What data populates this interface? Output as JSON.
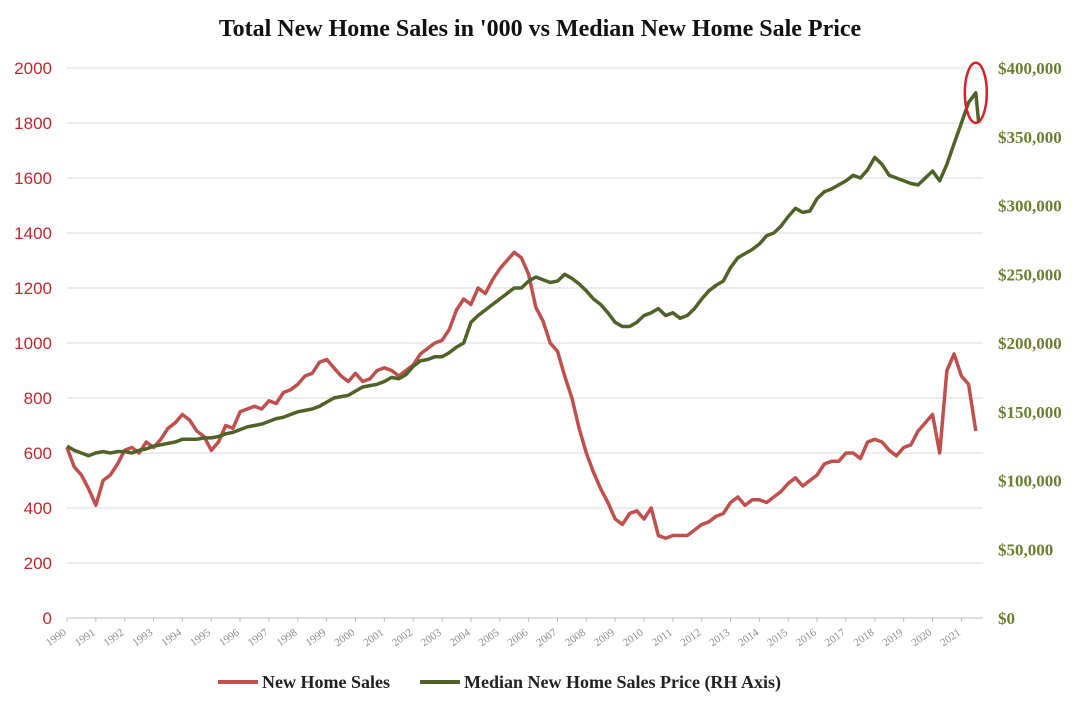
{
  "colors": {
    "sales": "#c0504d",
    "price": "#4f6228",
    "left_axis_text": "#c0282d",
    "right_axis_text": "#6b7d2f",
    "highlight_circle": "#d9202a"
  },
  "chart_data": {
    "type": "line",
    "title": "Total New Home Sales in '000 vs Median New Home Sale Price",
    "x_tick_labels": [
      "1990",
      "1991",
      "1992",
      "1993",
      "1994",
      "1995",
      "1996",
      "1997",
      "1998",
      "1999",
      "2000",
      "2001",
      "2002",
      "2003",
      "2004",
      "2005",
      "2006",
      "2007",
      "2008",
      "2009",
      "2010",
      "2011",
      "2012",
      "2013",
      "2014",
      "2015",
      "2016",
      "2017",
      "2018",
      "2019",
      "2020",
      "2021"
    ],
    "y_left": {
      "range": [
        0,
        2000
      ],
      "ticks": [
        "0",
        "200",
        "400",
        "600",
        "800",
        "1000",
        "1200",
        "1400",
        "1600",
        "1800",
        "2000"
      ]
    },
    "y_right": {
      "range": [
        0,
        400000
      ],
      "ticks": [
        "$0",
        "$50,000",
        "$100,000",
        "$150,000",
        "$200,000",
        "$250,000",
        "$300,000",
        "$350,000",
        "$400,000"
      ]
    },
    "grid": "horizontal",
    "legend_position": "bottom",
    "annotation": "red circle around 2021 median price peak",
    "series": [
      {
        "name": "New Home Sales",
        "axis": "left",
        "points": [
          [
            1990.0,
            620
          ],
          [
            1990.25,
            550
          ],
          [
            1990.5,
            520
          ],
          [
            1990.75,
            470
          ],
          [
            1991.0,
            410
          ],
          [
            1991.25,
            500
          ],
          [
            1991.5,
            520
          ],
          [
            1991.75,
            560
          ],
          [
            1992.0,
            610
          ],
          [
            1992.25,
            620
          ],
          [
            1992.5,
            600
          ],
          [
            1992.75,
            640
          ],
          [
            1993.0,
            620
          ],
          [
            1993.25,
            650
          ],
          [
            1993.5,
            690
          ],
          [
            1993.75,
            710
          ],
          [
            1994.0,
            740
          ],
          [
            1994.25,
            720
          ],
          [
            1994.5,
            680
          ],
          [
            1994.75,
            660
          ],
          [
            1995.0,
            610
          ],
          [
            1995.25,
            640
          ],
          [
            1995.5,
            700
          ],
          [
            1995.75,
            690
          ],
          [
            1996.0,
            750
          ],
          [
            1996.25,
            760
          ],
          [
            1996.5,
            770
          ],
          [
            1996.75,
            760
          ],
          [
            1997.0,
            790
          ],
          [
            1997.25,
            780
          ],
          [
            1997.5,
            820
          ],
          [
            1997.75,
            830
          ],
          [
            1998.0,
            850
          ],
          [
            1998.25,
            880
          ],
          [
            1998.5,
            890
          ],
          [
            1998.75,
            930
          ],
          [
            1999.0,
            940
          ],
          [
            1999.25,
            910
          ],
          [
            1999.5,
            880
          ],
          [
            1999.75,
            860
          ],
          [
            2000.0,
            890
          ],
          [
            2000.25,
            860
          ],
          [
            2000.5,
            870
          ],
          [
            2000.75,
            900
          ],
          [
            2001.0,
            910
          ],
          [
            2001.25,
            900
          ],
          [
            2001.5,
            880
          ],
          [
            2001.75,
            900
          ],
          [
            2002.0,
            920
          ],
          [
            2002.25,
            960
          ],
          [
            2002.5,
            980
          ],
          [
            2002.75,
            1000
          ],
          [
            2003.0,
            1010
          ],
          [
            2003.25,
            1050
          ],
          [
            2003.5,
            1120
          ],
          [
            2003.75,
            1160
          ],
          [
            2004.0,
            1140
          ],
          [
            2004.25,
            1200
          ],
          [
            2004.5,
            1180
          ],
          [
            2004.75,
            1230
          ],
          [
            2005.0,
            1270
          ],
          [
            2005.25,
            1300
          ],
          [
            2005.5,
            1330
          ],
          [
            2005.75,
            1310
          ],
          [
            2006.0,
            1250
          ],
          [
            2006.25,
            1130
          ],
          [
            2006.5,
            1080
          ],
          [
            2006.75,
            1000
          ],
          [
            2007.0,
            970
          ],
          [
            2007.25,
            880
          ],
          [
            2007.5,
            800
          ],
          [
            2007.75,
            690
          ],
          [
            2008.0,
            600
          ],
          [
            2008.25,
            530
          ],
          [
            2008.5,
            470
          ],
          [
            2008.75,
            420
          ],
          [
            2009.0,
            360
          ],
          [
            2009.25,
            340
          ],
          [
            2009.5,
            380
          ],
          [
            2009.75,
            390
          ],
          [
            2010.0,
            360
          ],
          [
            2010.25,
            400
          ],
          [
            2010.5,
            300
          ],
          [
            2010.75,
            290
          ],
          [
            2011.0,
            300
          ],
          [
            2011.25,
            300
          ],
          [
            2011.5,
            300
          ],
          [
            2011.75,
            320
          ],
          [
            2012.0,
            340
          ],
          [
            2012.25,
            350
          ],
          [
            2012.5,
            370
          ],
          [
            2012.75,
            380
          ],
          [
            2013.0,
            420
          ],
          [
            2013.25,
            440
          ],
          [
            2013.5,
            410
          ],
          [
            2013.75,
            430
          ],
          [
            2014.0,
            430
          ],
          [
            2014.25,
            420
          ],
          [
            2014.5,
            440
          ],
          [
            2014.75,
            460
          ],
          [
            2015.0,
            490
          ],
          [
            2015.25,
            510
          ],
          [
            2015.5,
            480
          ],
          [
            2015.75,
            500
          ],
          [
            2016.0,
            520
          ],
          [
            2016.25,
            560
          ],
          [
            2016.5,
            570
          ],
          [
            2016.75,
            570
          ],
          [
            2017.0,
            600
          ],
          [
            2017.25,
            600
          ],
          [
            2017.5,
            580
          ],
          [
            2017.75,
            640
          ],
          [
            2018.0,
            650
          ],
          [
            2018.25,
            640
          ],
          [
            2018.5,
            610
          ],
          [
            2018.75,
            590
          ],
          [
            2019.0,
            620
          ],
          [
            2019.25,
            630
          ],
          [
            2019.5,
            680
          ],
          [
            2019.75,
            710
          ],
          [
            2020.0,
            740
          ],
          [
            2020.25,
            600
          ],
          [
            2020.5,
            900
          ],
          [
            2020.75,
            960
          ],
          [
            2021.0,
            880
          ],
          [
            2021.25,
            850
          ],
          [
            2021.5,
            680
          ]
        ]
      },
      {
        "name": "Median New Home Sales Price (RH Axis)",
        "axis": "right",
        "points": [
          [
            1990.0,
            125000
          ],
          [
            1990.25,
            122000
          ],
          [
            1990.5,
            120000
          ],
          [
            1990.75,
            118000
          ],
          [
            1991.0,
            120000
          ],
          [
            1991.25,
            121000
          ],
          [
            1991.5,
            120000
          ],
          [
            1991.75,
            121000
          ],
          [
            1992.0,
            121000
          ],
          [
            1992.25,
            120000
          ],
          [
            1992.5,
            122000
          ],
          [
            1992.75,
            123000
          ],
          [
            1993.0,
            125000
          ],
          [
            1993.25,
            126000
          ],
          [
            1993.5,
            127000
          ],
          [
            1993.75,
            128000
          ],
          [
            1994.0,
            130000
          ],
          [
            1994.25,
            130000
          ],
          [
            1994.5,
            130000
          ],
          [
            1994.75,
            131000
          ],
          [
            1995.0,
            131000
          ],
          [
            1995.25,
            132000
          ],
          [
            1995.5,
            134000
          ],
          [
            1995.75,
            135000
          ],
          [
            1996.0,
            137000
          ],
          [
            1996.25,
            139000
          ],
          [
            1996.5,
            140000
          ],
          [
            1996.75,
            141000
          ],
          [
            1997.0,
            143000
          ],
          [
            1997.25,
            145000
          ],
          [
            1997.5,
            146000
          ],
          [
            1997.75,
            148000
          ],
          [
            1998.0,
            150000
          ],
          [
            1998.25,
            151000
          ],
          [
            1998.5,
            152000
          ],
          [
            1998.75,
            154000
          ],
          [
            1999.0,
            157000
          ],
          [
            1999.25,
            160000
          ],
          [
            1999.5,
            161000
          ],
          [
            1999.75,
            162000
          ],
          [
            2000.0,
            165000
          ],
          [
            2000.25,
            168000
          ],
          [
            2000.5,
            169000
          ],
          [
            2000.75,
            170000
          ],
          [
            2001.0,
            172000
          ],
          [
            2001.25,
            175000
          ],
          [
            2001.5,
            174000
          ],
          [
            2001.75,
            177000
          ],
          [
            2002.0,
            183000
          ],
          [
            2002.25,
            187000
          ],
          [
            2002.5,
            188000
          ],
          [
            2002.75,
            190000
          ],
          [
            2003.0,
            190000
          ],
          [
            2003.25,
            193000
          ],
          [
            2003.5,
            197000
          ],
          [
            2003.75,
            200000
          ],
          [
            2004.0,
            215000
          ],
          [
            2004.25,
            220000
          ],
          [
            2004.5,
            224000
          ],
          [
            2004.75,
            228000
          ],
          [
            2005.0,
            232000
          ],
          [
            2005.25,
            236000
          ],
          [
            2005.5,
            240000
          ],
          [
            2005.75,
            240000
          ],
          [
            2006.0,
            245000
          ],
          [
            2006.25,
            248000
          ],
          [
            2006.5,
            246000
          ],
          [
            2006.75,
            244000
          ],
          [
            2007.0,
            245000
          ],
          [
            2007.25,
            250000
          ],
          [
            2007.5,
            247000
          ],
          [
            2007.75,
            243000
          ],
          [
            2008.0,
            238000
          ],
          [
            2008.25,
            232000
          ],
          [
            2008.5,
            228000
          ],
          [
            2008.75,
            222000
          ],
          [
            2009.0,
            215000
          ],
          [
            2009.25,
            212000
          ],
          [
            2009.5,
            212000
          ],
          [
            2009.75,
            215000
          ],
          [
            2010.0,
            220000
          ],
          [
            2010.25,
            222000
          ],
          [
            2010.5,
            225000
          ],
          [
            2010.75,
            220000
          ],
          [
            2011.0,
            222000
          ],
          [
            2011.25,
            218000
          ],
          [
            2011.5,
            220000
          ],
          [
            2011.75,
            225000
          ],
          [
            2012.0,
            232000
          ],
          [
            2012.25,
            238000
          ],
          [
            2012.5,
            242000
          ],
          [
            2012.75,
            245000
          ],
          [
            2013.0,
            255000
          ],
          [
            2013.25,
            262000
          ],
          [
            2013.5,
            265000
          ],
          [
            2013.75,
            268000
          ],
          [
            2014.0,
            272000
          ],
          [
            2014.25,
            278000
          ],
          [
            2014.5,
            280000
          ],
          [
            2014.75,
            285000
          ],
          [
            2015.0,
            292000
          ],
          [
            2015.25,
            298000
          ],
          [
            2015.5,
            295000
          ],
          [
            2015.75,
            296000
          ],
          [
            2016.0,
            305000
          ],
          [
            2016.25,
            310000
          ],
          [
            2016.5,
            312000
          ],
          [
            2016.75,
            315000
          ],
          [
            2017.0,
            318000
          ],
          [
            2017.25,
            322000
          ],
          [
            2017.5,
            320000
          ],
          [
            2017.75,
            326000
          ],
          [
            2018.0,
            335000
          ],
          [
            2018.25,
            330000
          ],
          [
            2018.5,
            322000
          ],
          [
            2018.75,
            320000
          ],
          [
            2019.0,
            318000
          ],
          [
            2019.25,
            316000
          ],
          [
            2019.5,
            315000
          ],
          [
            2019.75,
            320000
          ],
          [
            2020.0,
            325000
          ],
          [
            2020.25,
            318000
          ],
          [
            2020.5,
            330000
          ],
          [
            2020.75,
            345000
          ],
          [
            2021.0,
            360000
          ],
          [
            2021.25,
            375000
          ],
          [
            2021.5,
            382000
          ],
          [
            2021.6,
            360000
          ]
        ]
      }
    ]
  }
}
